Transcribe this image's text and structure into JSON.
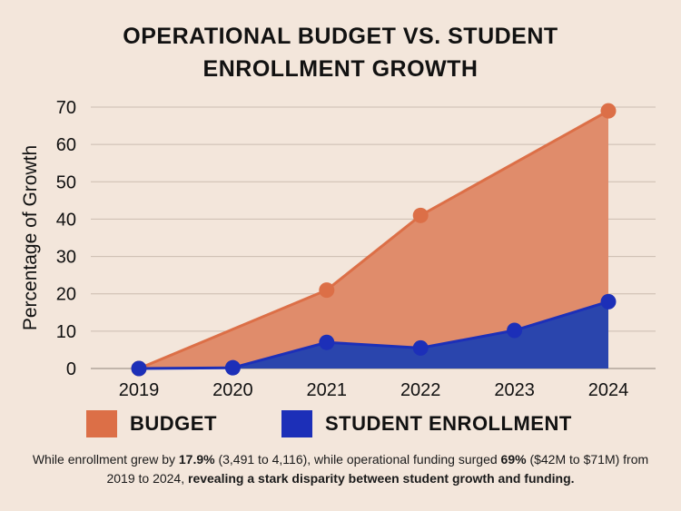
{
  "title": {
    "line1": "OPERATIONAL BUDGET VS. STUDENT",
    "line2": "ENROLLMENT GROWTH"
  },
  "colors": {
    "background": "#f3e6db",
    "budget_fill": "#e08c6b",
    "budget_line": "#dc6f47",
    "enrollment_fill": "#2a45ad",
    "enrollment_line": "#1c2fb8",
    "grid": "#cbbcb0"
  },
  "chart_data": {
    "type": "area",
    "title": "OPERATIONAL BUDGET VS. STUDENT ENROLLMENT GROWTH",
    "xlabel": "",
    "ylabel": "Percentage of Growth",
    "x": [
      "2019",
      "2020",
      "2021",
      "2022",
      "2023",
      "2024"
    ],
    "ylim": [
      0,
      70
    ],
    "yticks": [
      0,
      10,
      20,
      30,
      40,
      50,
      60,
      70
    ],
    "grid": true,
    "legend_position": "bottom",
    "series": [
      {
        "name": "BUDGET",
        "values": [
          0,
          null,
          21,
          41,
          null,
          69
        ],
        "line_values": [
          0,
          10.5,
          21,
          41,
          55,
          69
        ],
        "markers": [
          true,
          false,
          true,
          true,
          false,
          true
        ]
      },
      {
        "name": "STUDENT ENROLLMENT",
        "values": [
          0,
          0.2,
          7,
          5.5,
          10.2,
          17.9
        ],
        "markers": [
          true,
          true,
          true,
          true,
          true,
          true
        ]
      }
    ]
  },
  "legend": {
    "budget_label": "BUDGET",
    "enrollment_label": "STUDENT ENROLLMENT"
  },
  "caption": {
    "t1": "While enrollment grew by ",
    "b1": "17.9%",
    "t2": " (3,491 to 4,116), while operational funding surged ",
    "b2": "69%",
    "t3": " ($42M to $71M) from 2019 to 2024, ",
    "b3": "revealing a stark disparity between student growth and funding."
  }
}
